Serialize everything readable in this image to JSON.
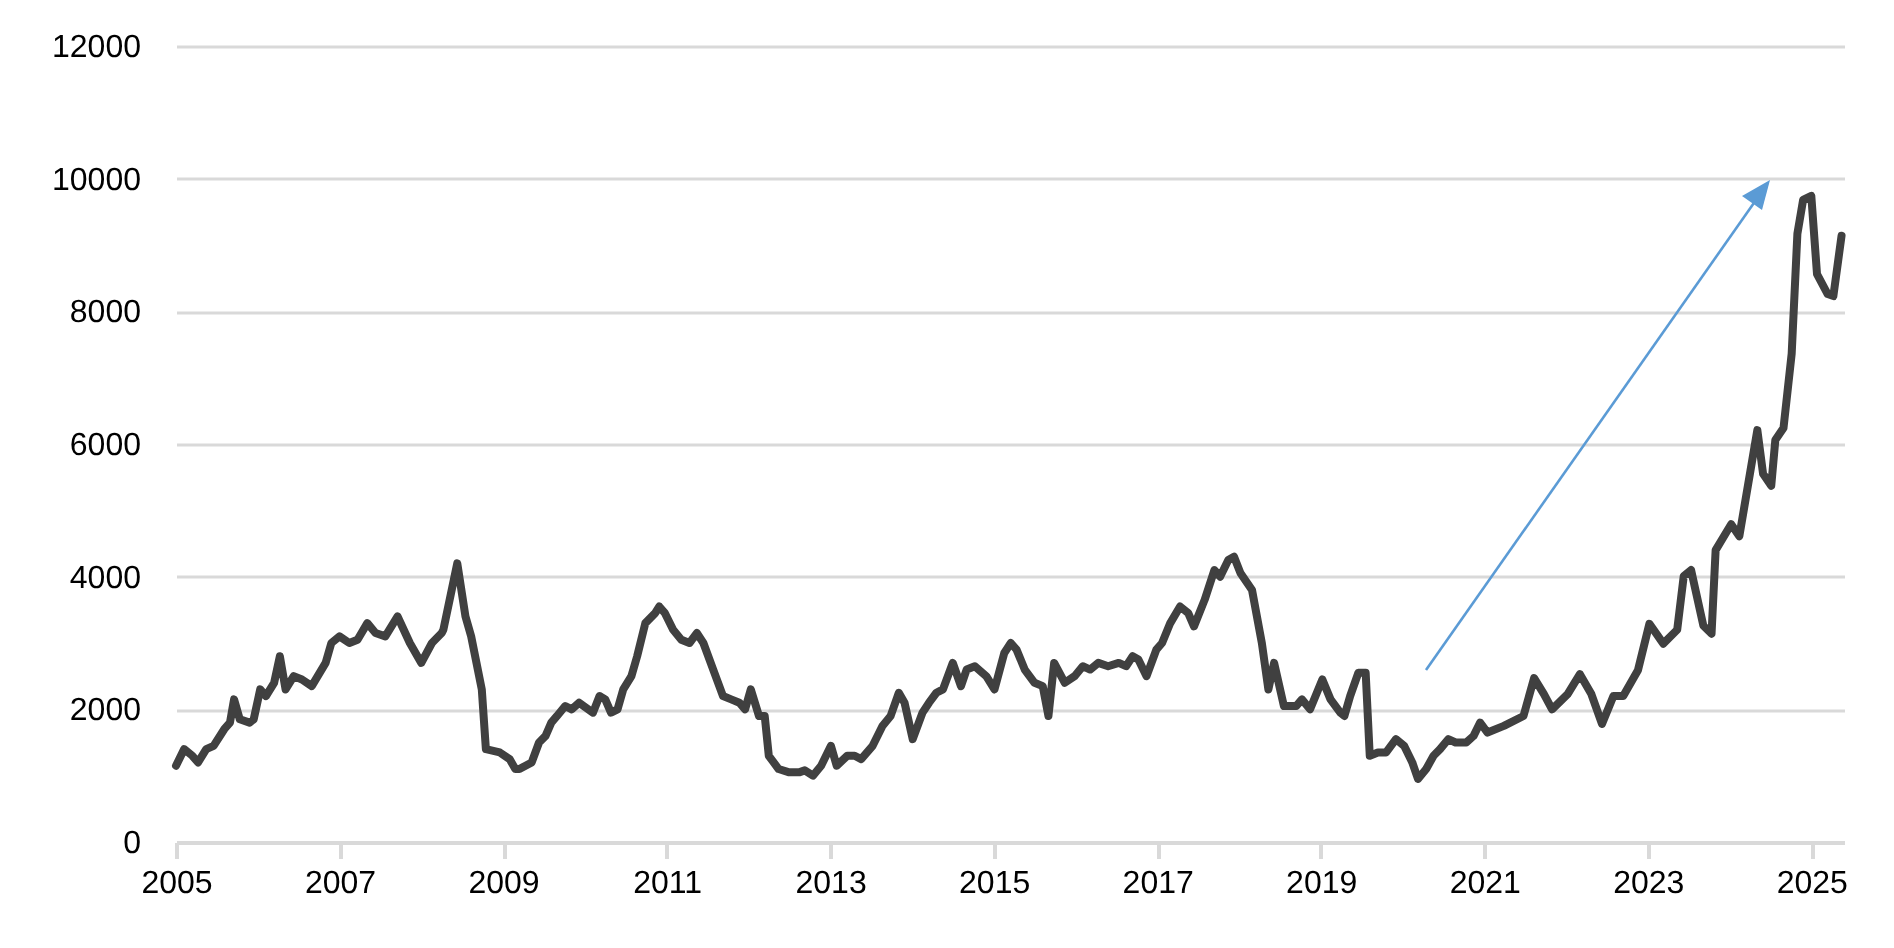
{
  "chart_data": {
    "type": "line",
    "x": [
      2005.0,
      2005.1,
      2005.2,
      2005.27,
      2005.37,
      2005.46,
      2005.59,
      2005.66,
      2005.71,
      2005.78,
      2005.9,
      2005.95,
      2006.03,
      2006.1,
      2006.2,
      2006.27,
      2006.34,
      2006.44,
      2006.54,
      2006.66,
      2006.83,
      2006.9,
      2007.0,
      2007.12,
      2007.22,
      2007.34,
      2007.44,
      2007.56,
      2007.71,
      2007.86,
      2008.0,
      2008.13,
      2008.25,
      2008.27,
      2008.44,
      2008.54,
      2008.61,
      2008.74,
      2008.79,
      2008.96,
      2009.08,
      2009.15,
      2009.2,
      2009.35,
      2009.44,
      2009.52,
      2009.59,
      2009.66,
      2009.76,
      2009.84,
      2009.93,
      2010.1,
      2010.18,
      2010.25,
      2010.32,
      2010.4,
      2010.47,
      2010.57,
      2010.64,
      2010.74,
      2010.86,
      2010.91,
      2010.98,
      2011.08,
      2011.18,
      2011.28,
      2011.37,
      2011.45,
      2011.57,
      2011.69,
      2011.79,
      2011.89,
      2011.96,
      2012.03,
      2012.13,
      2012.2,
      2012.25,
      2012.37,
      2012.5,
      2012.62,
      2012.69,
      2012.79,
      2012.89,
      2013.01,
      2013.08,
      2013.21,
      2013.3,
      2013.38,
      2013.52,
      2013.64,
      2013.74,
      2013.84,
      2013.91,
      2014.01,
      2014.13,
      2014.21,
      2014.3,
      2014.38,
      2014.5,
      2014.6,
      2014.67,
      2014.77,
      2014.91,
      2015.01,
      2015.13,
      2015.21,
      2015.28,
      2015.38,
      2015.5,
      2015.6,
      2015.67,
      2015.74,
      2015.87,
      2015.99,
      2016.09,
      2016.18,
      2016.28,
      2016.4,
      2016.53,
      2016.62,
      2016.7,
      2016.77,
      2016.87,
      2016.99,
      2017.06,
      2017.16,
      2017.28,
      2017.38,
      2017.45,
      2017.58,
      2017.7,
      2017.77,
      2017.87,
      2017.94,
      2018.02,
      2018.16,
      2018.28,
      2018.36,
      2018.43,
      2018.55,
      2018.7,
      2018.77,
      2018.87,
      2019.02,
      2019.12,
      2019.24,
      2019.29,
      2019.36,
      2019.46,
      2019.55,
      2019.6,
      2019.7,
      2019.8,
      2019.92,
      2020.02,
      2020.12,
      2020.19,
      2020.29,
      2020.38,
      2020.46,
      2020.56,
      2020.65,
      2020.78,
      2020.87,
      2020.95,
      2021.04,
      2021.24,
      2021.48,
      2021.61,
      2021.73,
      2021.83,
      2022.02,
      2022.17,
      2022.31,
      2022.44,
      2022.58,
      2022.7,
      2022.88,
      2023.02,
      2023.19,
      2023.36,
      2023.44,
      2023.53,
      2023.68,
      2023.78,
      2023.83,
      2024.02,
      2024.12,
      2024.34,
      2024.41,
      2024.51,
      2024.56,
      2024.66,
      2024.76,
      2024.83,
      2024.9,
      2025.0,
      2025.07,
      2025.2,
      2025.27,
      2025.37
    ],
    "series": [
      {
        "color": "#404040",
        "values": [
          1150,
          1400,
          1300,
          1200,
          1400,
          1450,
          1700,
          1800,
          2150,
          1850,
          1800,
          1850,
          2300,
          2200,
          2400,
          2800,
          2300,
          2500,
          2450,
          2350,
          2700,
          3000,
          3100,
          3000,
          3050,
          3300,
          3150,
          3100,
          3400,
          3000,
          2700,
          3000,
          3150,
          3200,
          4200,
          3400,
          3100,
          2300,
          1400,
          1350,
          1250,
          1100,
          1100,
          1200,
          1500,
          1600,
          1800,
          1900,
          2050,
          2000,
          2100,
          1950,
          2200,
          2150,
          1950,
          2000,
          2300,
          2500,
          2800,
          3300,
          3450,
          3550,
          3450,
          3200,
          3050,
          3000,
          3150,
          3000,
          2600,
          2200,
          2150,
          2100,
          2000,
          2300,
          1900,
          1900,
          1300,
          1100,
          1050,
          1050,
          1080,
          1000,
          1150,
          1450,
          1150,
          1300,
          1300,
          1250,
          1450,
          1750,
          1900,
          2250,
          2100,
          1550,
          1950,
          2100,
          2250,
          2300,
          2700,
          2350,
          2600,
          2650,
          2500,
          2300,
          2850,
          3000,
          2900,
          2600,
          2400,
          2350,
          1900,
          2700,
          2400,
          2500,
          2650,
          2600,
          2700,
          2650,
          2700,
          2650,
          2800,
          2750,
          2500,
          2900,
          3000,
          3300,
          3550,
          3450,
          3250,
          3650,
          4100,
          4000,
          4250,
          4300,
          4050,
          3800,
          3000,
          2300,
          2700,
          2050,
          2050,
          2150,
          2000,
          2450,
          2150,
          1950,
          1900,
          2200,
          2550,
          2550,
          1300,
          1350,
          1350,
          1550,
          1450,
          1200,
          950,
          1100,
          1300,
          1400,
          1550,
          1500,
          1500,
          1600,
          1800,
          1650,
          1750,
          1900,
          2470,
          2230,
          2000,
          2230,
          2530,
          2230,
          1780,
          2200,
          2200,
          2590,
          3290,
          2990,
          3200,
          4010,
          4100,
          3260,
          3140,
          4400,
          4790,
          4610,
          6210,
          5550,
          5370,
          6060,
          6240,
          7360,
          9170,
          9680,
          9740,
          8560,
          8260,
          8230,
          9140
        ]
      }
    ],
    "xlim": [
      2005,
      2025.4
    ],
    "xticks": [
      2005,
      2007,
      2009,
      2011,
      2013,
      2015,
      2017,
      2019,
      2021,
      2023,
      2025
    ],
    "ylim": [
      0,
      12000
    ],
    "yticks": [
      0,
      2000,
      4000,
      6000,
      8000,
      10000,
      12000
    ],
    "grid": "y",
    "marker": "none",
    "line_style": "solid"
  }
}
